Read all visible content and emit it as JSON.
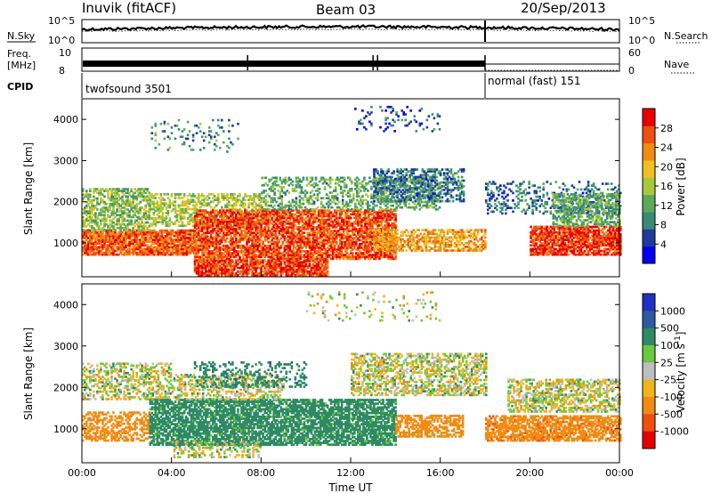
{
  "header": {
    "station": "Inuvik (fitACF)",
    "beam": "Beam 03",
    "date": "20/Sep/2013"
  },
  "noise_panel": {
    "left_label": "N.Sky",
    "right_label": "N.Search",
    "left_ticks": [
      "10^5",
      "10^0"
    ],
    "right_ticks": [
      "10^5",
      "10^0"
    ]
  },
  "freq_panel": {
    "left_label_line1": "Freq.",
    "left_label_line2": "[MHz]",
    "right_label": "Nave",
    "left_ticks": [
      "10",
      "8"
    ],
    "right_ticks": [
      "60",
      "0"
    ]
  },
  "cpid": {
    "label": "CPID",
    "segments": [
      {
        "name": "twofsound 3501",
        "start_hour": 0,
        "end_hour": 18
      },
      {
        "name": "normal (fast) 151",
        "start_hour": 18,
        "end_hour": 24
      }
    ]
  },
  "colors": {
    "power_scale": [
      "#0000ee",
      "#1e3ca0",
      "#3a8a78",
      "#5aaa5a",
      "#a8c83c",
      "#f0c020",
      "#f08c14",
      "#ee5010",
      "#e80000"
    ],
    "velocity_scale": [
      "#2030c0",
      "#2c5aa0",
      "#2e8a64",
      "#6cc83c",
      "#bebebe",
      "#f0b41e",
      "#f08c14",
      "#ee5010",
      "#e80000"
    ]
  },
  "chart_data": [
    {
      "type": "heatmap",
      "name": "power",
      "xlabel": "Time UT",
      "ylabel": "Slant Range [km]",
      "xlim": [
        0,
        24
      ],
      "ylim": [
        180,
        4500
      ],
      "x_ticks": [
        "00:00",
        "04:00",
        "08:00",
        "12:00",
        "16:00",
        "20:00",
        "00:00"
      ],
      "y_ticks": [
        "1000",
        "2000",
        "3000",
        "4000"
      ],
      "colorbar_label": "Power [dB]",
      "colorbar_ticks": [
        "4",
        "8",
        "12",
        "16",
        "20",
        "24",
        "28"
      ],
      "colorbar_range": [
        0,
        32
      ],
      "bands": [
        {
          "t0": 0,
          "t1": 5,
          "r0": 700,
          "r1": 1300,
          "value": 26,
          "density": 0.85
        },
        {
          "t0": 0,
          "t1": 3,
          "r0": 1300,
          "r1": 2300,
          "value": 14,
          "density": 0.6
        },
        {
          "t0": 3,
          "t1": 8,
          "r0": 1400,
          "r1": 2200,
          "value": 16,
          "density": 0.5
        },
        {
          "t0": 5,
          "t1": 11,
          "r0": 200,
          "r1": 600,
          "value": 28,
          "density": 0.8
        },
        {
          "t0": 5,
          "t1": 14,
          "r0": 600,
          "r1": 1800,
          "value": 27,
          "density": 0.75
        },
        {
          "t0": 8,
          "t1": 16,
          "r0": 1800,
          "r1": 2600,
          "value": 12,
          "density": 0.4
        },
        {
          "t0": 13,
          "t1": 18,
          "r0": 800,
          "r1": 1300,
          "value": 22,
          "density": 0.6
        },
        {
          "t0": 13,
          "t1": 17,
          "r0": 2000,
          "r1": 2800,
          "value": 8,
          "density": 0.45
        },
        {
          "t0": 18,
          "t1": 24,
          "r0": 1700,
          "r1": 2500,
          "value": 8,
          "density": 0.25
        },
        {
          "t0": 20,
          "t1": 24,
          "r0": 700,
          "r1": 1400,
          "value": 28,
          "density": 0.8
        },
        {
          "t0": 21,
          "t1": 24,
          "r0": 1400,
          "r1": 2200,
          "value": 12,
          "density": 0.55
        },
        {
          "t0": 3,
          "t1": 7,
          "r0": 3200,
          "r1": 4000,
          "value": 10,
          "density": 0.1
        },
        {
          "t0": 12,
          "t1": 16,
          "r0": 3700,
          "r1": 4300,
          "value": 6,
          "density": 0.12
        }
      ]
    },
    {
      "type": "heatmap",
      "name": "velocity",
      "xlabel": "Time UT",
      "ylabel": "Slant Range [km]",
      "xlim": [
        0,
        24
      ],
      "ylim": [
        180,
        4500
      ],
      "x_ticks": [
        "00:00",
        "04:00",
        "08:00",
        "12:00",
        "16:00",
        "20:00",
        "00:00"
      ],
      "y_ticks": [
        "1000",
        "2000",
        "3000",
        "4000"
      ],
      "colorbar_label": "Velocity [m s^-1]",
      "colorbar_ticks": [
        "1000",
        "500",
        "100",
        "25",
        "-25",
        "-100",
        "-500",
        "-1000"
      ],
      "bands": [
        {
          "t0": 0,
          "t1": 4,
          "r0": 1700,
          "r1": 2600,
          "value": 0,
          "density": 0.45
        },
        {
          "t0": 0,
          "t1": 3,
          "r0": 700,
          "r1": 1400,
          "value": -300,
          "density": 0.5
        },
        {
          "t0": 3,
          "t1": 14,
          "r0": 600,
          "r1": 1700,
          "value": 200,
          "density": 0.75
        },
        {
          "t0": 4,
          "t1": 9,
          "r0": 1700,
          "r1": 2300,
          "value": 0,
          "density": 0.4
        },
        {
          "t0": 5,
          "t1": 10,
          "r0": 2000,
          "r1": 2600,
          "value": 400,
          "density": 0.3
        },
        {
          "t0": 14,
          "t1": 17,
          "r0": 800,
          "r1": 1300,
          "value": -300,
          "density": 0.6
        },
        {
          "t0": 12,
          "t1": 18,
          "r0": 1800,
          "r1": 2800,
          "value": 0,
          "density": 0.5
        },
        {
          "t0": 18,
          "t1": 24,
          "r0": 700,
          "r1": 1300,
          "value": -400,
          "density": 0.7
        },
        {
          "t0": 19,
          "t1": 24,
          "r0": 1400,
          "r1": 2200,
          "value": 0,
          "density": 0.55
        },
        {
          "t0": 4,
          "t1": 8,
          "r0": 300,
          "r1": 700,
          "value": 0,
          "density": 0.35
        },
        {
          "t0": 10,
          "t1": 16,
          "r0": 3600,
          "r1": 4300,
          "value": 0,
          "density": 0.08
        }
      ]
    }
  ]
}
